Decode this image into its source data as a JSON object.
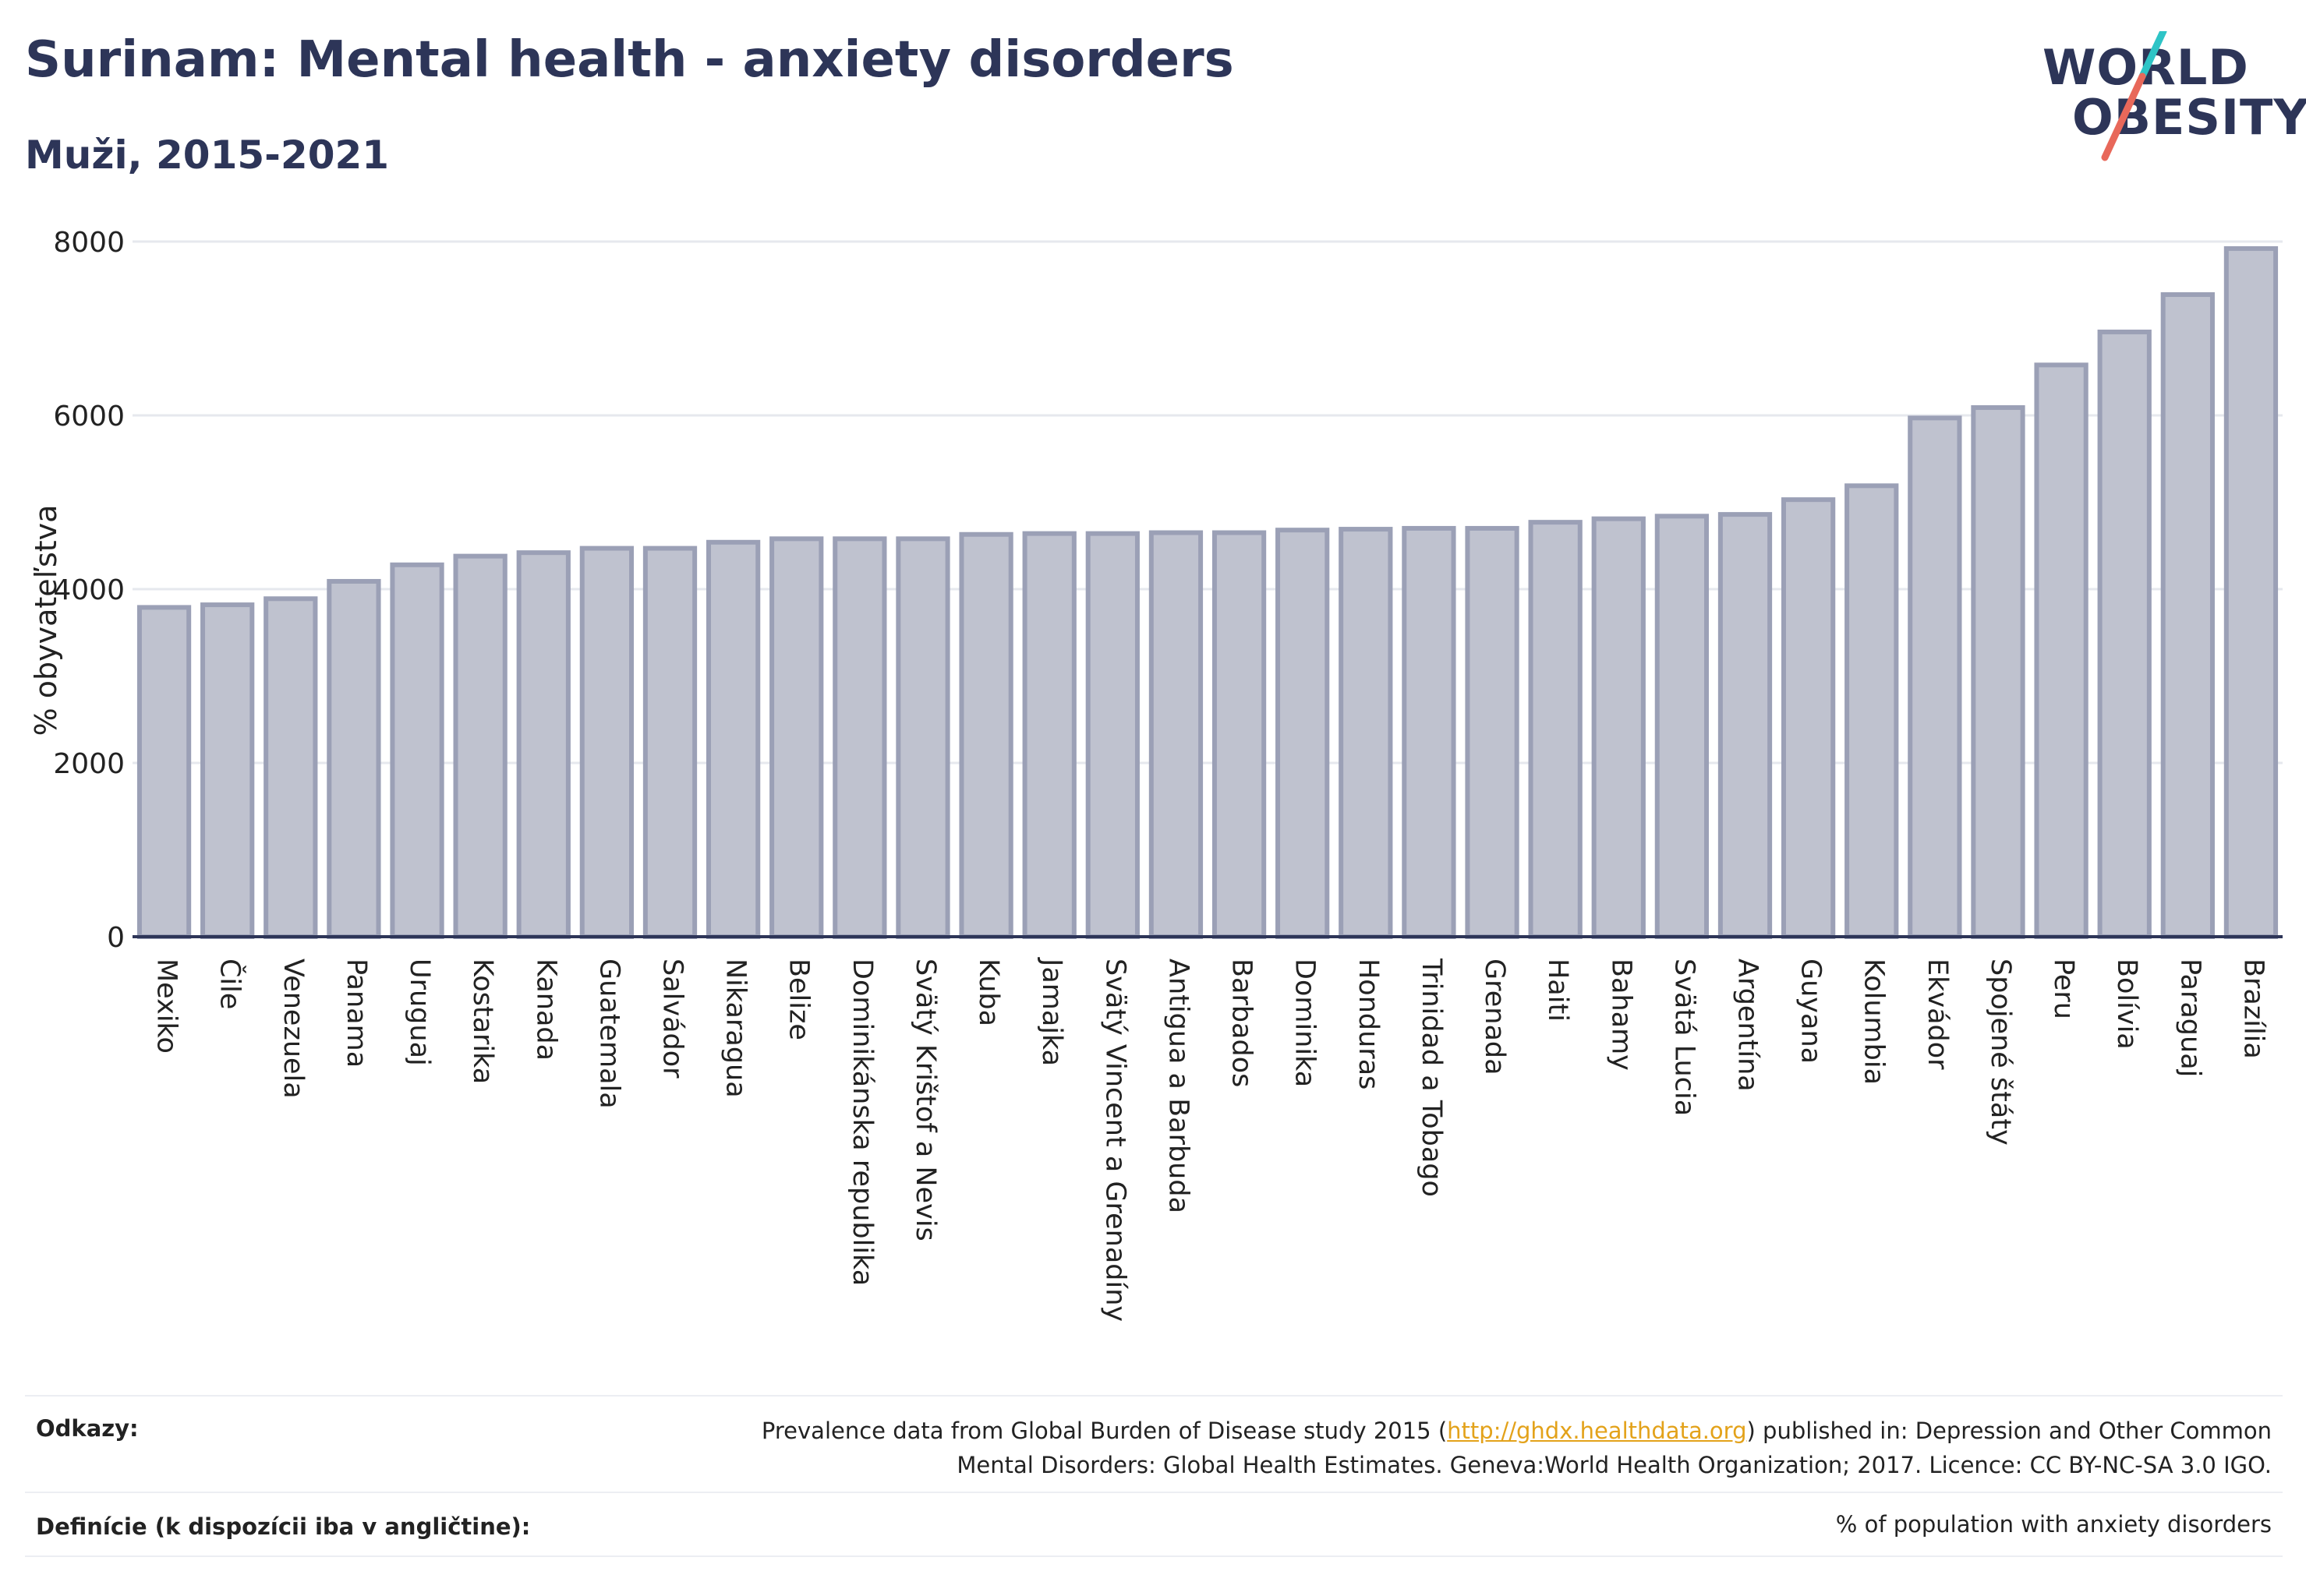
{
  "header": {
    "title": "Surinam: Mental health - anxiety disorders",
    "subtitle": "Muži, 2015-2021"
  },
  "logo": {
    "line1": "WORLD",
    "line2": "OBESITY",
    "accent_teal": "#2ec4c6",
    "accent_red": "#e8685a"
  },
  "colors": {
    "bar_fill": "#bfc2cf",
    "bar_stroke": "#9ba0b6",
    "axis": "#2d3558",
    "grid": "#e6e8ee"
  },
  "chart_data": {
    "type": "bar",
    "ylabel": "% obyvateľstva",
    "xlabel": "",
    "ylim": [
      0,
      8000
    ],
    "yticks": [
      0,
      2000,
      4000,
      6000,
      8000
    ],
    "grid": true,
    "categories": [
      "Mexiko",
      "Čile",
      "Venezuela",
      "Panama",
      "Uruguaj",
      "Kostarika",
      "Kanada",
      "Guatemala",
      "Salvádor",
      "Nikaragua",
      "Belize",
      "Dominikánska republika",
      "Svätý Krištof a Nevis",
      "Kuba",
      "Jamajka",
      "Svätý Vincent a Grenadíny",
      "Antigua a Barbuda",
      "Barbados",
      "Dominika",
      "Honduras",
      "Trinidad a Tobago",
      "Grenada",
      "Haiti",
      "Bahamy",
      "Svätá Lucia",
      "Argentína",
      "Guyana",
      "Kolumbia",
      "Ekvádor",
      "Spojené štáty",
      "Peru",
      "Bolívia",
      "Paraguaj",
      "Brazília"
    ],
    "values": [
      3790,
      3820,
      3890,
      4090,
      4280,
      4380,
      4420,
      4470,
      4470,
      4540,
      4580,
      4580,
      4580,
      4630,
      4640,
      4640,
      4650,
      4650,
      4680,
      4690,
      4700,
      4700,
      4770,
      4810,
      4840,
      4860,
      5030,
      5190,
      5970,
      6090,
      6580,
      6960,
      7390,
      7920
    ]
  },
  "footer": {
    "sources_label": "Odkazy:",
    "sources_text_1": "Prevalence data from Global Burden of Disease study 2015 (",
    "sources_link": "http://ghdx.healthdata.org",
    "sources_text_2": ") published in: Depression and Other Common",
    "sources_text_3": "Mental Disorders: Global Health Estimates. Geneva:World Health Organization; 2017. Licence: CC BY-NC-SA 3.0 IGO.",
    "definition_label": "Definície (k dispozícii iba v angličtine):",
    "definition_text": "% of population with anxiety disorders"
  }
}
